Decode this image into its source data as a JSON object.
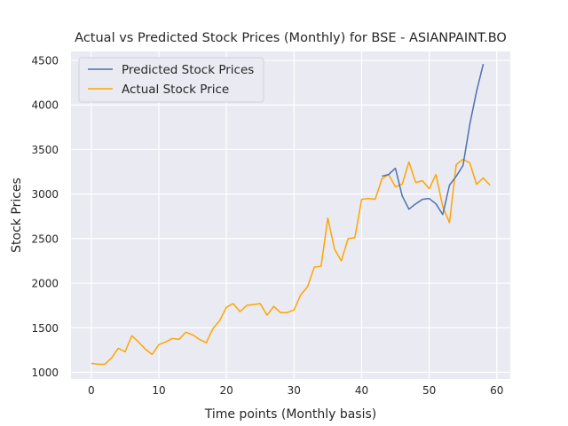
{
  "chart_data": {
    "type": "line",
    "title": "Actual vs Predicted Stock Prices (Monthly) for BSE - ASIANPAINT.BO",
    "xlabel": "Time points (Monthly basis)",
    "ylabel": "Stock Prices",
    "xlim": [
      -3,
      62
    ],
    "ylim": [
      925,
      4600
    ],
    "xticks": [
      0,
      10,
      20,
      30,
      40,
      50,
      60
    ],
    "yticks": [
      1000,
      1500,
      2000,
      2500,
      3000,
      3500,
      4000,
      4500
    ],
    "grid": true,
    "legend_position": "upper-left",
    "series": [
      {
        "name": "Predicted Stock Prices",
        "color": "#4c72b0",
        "x": [
          43,
          44,
          45,
          46,
          47,
          48,
          49,
          50,
          51,
          52,
          53,
          54,
          55,
          56,
          57,
          58
        ],
        "y": [
          3200,
          3220,
          3290,
          2980,
          2830,
          2890,
          2940,
          2950,
          2890,
          2770,
          3100,
          3200,
          3320,
          3780,
          4150,
          4460
        ]
      },
      {
        "name": "Actual Stock Price",
        "color": "#ffa500",
        "x": [
          0,
          1,
          2,
          3,
          4,
          5,
          6,
          7,
          8,
          9,
          10,
          11,
          12,
          13,
          14,
          15,
          16,
          17,
          18,
          19,
          20,
          21,
          22,
          23,
          24,
          25,
          26,
          27,
          28,
          29,
          30,
          31,
          32,
          33,
          34,
          35,
          36,
          37,
          38,
          39,
          40,
          41,
          42,
          43,
          44,
          45,
          46,
          47,
          48,
          49,
          50,
          51,
          52,
          53,
          54,
          55,
          56,
          57,
          58,
          59
        ],
        "y": [
          1100,
          1090,
          1090,
          1160,
          1270,
          1230,
          1410,
          1340,
          1260,
          1200,
          1310,
          1340,
          1380,
          1370,
          1450,
          1420,
          1370,
          1330,
          1490,
          1580,
          1730,
          1770,
          1680,
          1750,
          1760,
          1770,
          1640,
          1740,
          1670,
          1670,
          1700,
          1870,
          1960,
          2180,
          2190,
          2730,
          2380,
          2250,
          2500,
          2510,
          2940,
          2950,
          2940,
          3170,
          3220,
          3080,
          3110,
          3360,
          3130,
          3150,
          3060,
          3220,
          2860,
          2680,
          3330,
          3390,
          3350,
          3110,
          3180,
          3100
        ]
      }
    ]
  }
}
